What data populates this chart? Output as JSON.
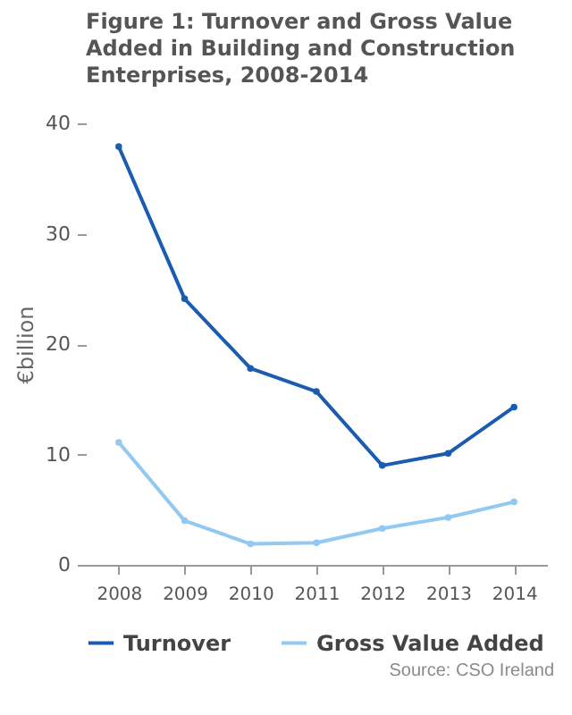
{
  "chart_data": {
    "type": "line",
    "title": "Figure 1: Turnover and Gross Value Added in Building and Construction Enterprises, 2008-2014",
    "categories": [
      "2008",
      "2009",
      "2010",
      "2011",
      "2012",
      "2013",
      "2014"
    ],
    "series": [
      {
        "name": "Turnover",
        "color": "#1a5cb0",
        "values": [
          37.9,
          24.1,
          17.8,
          15.7,
          9.0,
          10.1,
          14.3
        ]
      },
      {
        "name": "Gross Value Added",
        "color": "#92c9f2",
        "values": [
          11.1,
          4.0,
          1.9,
          2.0,
          3.3,
          4.3,
          5.7
        ]
      }
    ],
    "ylabel": "€billion",
    "ylim": [
      0,
      40
    ],
    "yticks": [
      0,
      10,
      20,
      30,
      40
    ],
    "grid": false,
    "legend": "bottom",
    "marker": "circle",
    "annotations": [
      "Source: CSO Ireland"
    ]
  }
}
